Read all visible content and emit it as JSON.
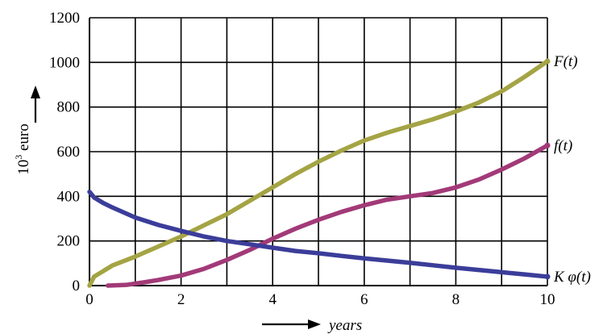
{
  "chart_data": {
    "type": "line",
    "xlabel": "years",
    "ylabel": "10",
    "ylabel_sup": "3",
    "ylabel_unit": " euro",
    "xlim": [
      0,
      10
    ],
    "ylim": [
      0,
      1200
    ],
    "x_ticks": [
      0,
      2,
      4,
      6,
      8,
      10
    ],
    "y_ticks": [
      0,
      200,
      400,
      600,
      800,
      1000,
      1200
    ],
    "grid": true,
    "series": [
      {
        "name": "F(t)",
        "color": "#a4a445",
        "points": [
          [
            0,
            0
          ],
          [
            0.1,
            40
          ],
          [
            0.5,
            90
          ],
          [
            1,
            130
          ],
          [
            1.5,
            175
          ],
          [
            2,
            220
          ],
          [
            2.5,
            270
          ],
          [
            3,
            320
          ],
          [
            3.5,
            380
          ],
          [
            4,
            440
          ],
          [
            4.5,
            500
          ],
          [
            5,
            555
          ],
          [
            5.5,
            605
          ],
          [
            6,
            650
          ],
          [
            6.5,
            685
          ],
          [
            7,
            715
          ],
          [
            7.5,
            745
          ],
          [
            8,
            780
          ],
          [
            8.5,
            820
          ],
          [
            9,
            870
          ],
          [
            9.5,
            935
          ],
          [
            10,
            1005
          ]
        ]
      },
      {
        "name": "f(t)",
        "color": "#a23a78",
        "points": [
          [
            0.4,
            0
          ],
          [
            0.8,
            3
          ],
          [
            1.2,
            15
          ],
          [
            1.5,
            25
          ],
          [
            2,
            45
          ],
          [
            2.5,
            75
          ],
          [
            3,
            115
          ],
          [
            3.5,
            160
          ],
          [
            4,
            210
          ],
          [
            4.5,
            255
          ],
          [
            5,
            295
          ],
          [
            5.5,
            330
          ],
          [
            6,
            360
          ],
          [
            6.5,
            385
          ],
          [
            7,
            400
          ],
          [
            7.5,
            415
          ],
          [
            8,
            440
          ],
          [
            8.5,
            475
          ],
          [
            9,
            520
          ],
          [
            9.5,
            570
          ],
          [
            10,
            628
          ]
        ]
      },
      {
        "name": "K φ(t)",
        "color": "#3b3d9a",
        "points": [
          [
            0,
            420
          ],
          [
            0.1,
            395
          ],
          [
            0.3,
            370
          ],
          [
            0.5,
            350
          ],
          [
            1,
            305
          ],
          [
            1.5,
            272
          ],
          [
            2,
            245
          ],
          [
            2.5,
            220
          ],
          [
            3,
            200
          ],
          [
            3.5,
            185
          ],
          [
            4,
            170
          ],
          [
            4.5,
            155
          ],
          [
            5,
            145
          ],
          [
            5.5,
            133
          ],
          [
            6,
            122
          ],
          [
            6.5,
            112
          ],
          [
            7,
            102
          ],
          [
            7.5,
            91
          ],
          [
            8,
            80
          ],
          [
            8.5,
            70
          ],
          [
            9,
            60
          ],
          [
            9.5,
            50
          ],
          [
            10,
            40
          ]
        ]
      }
    ]
  }
}
